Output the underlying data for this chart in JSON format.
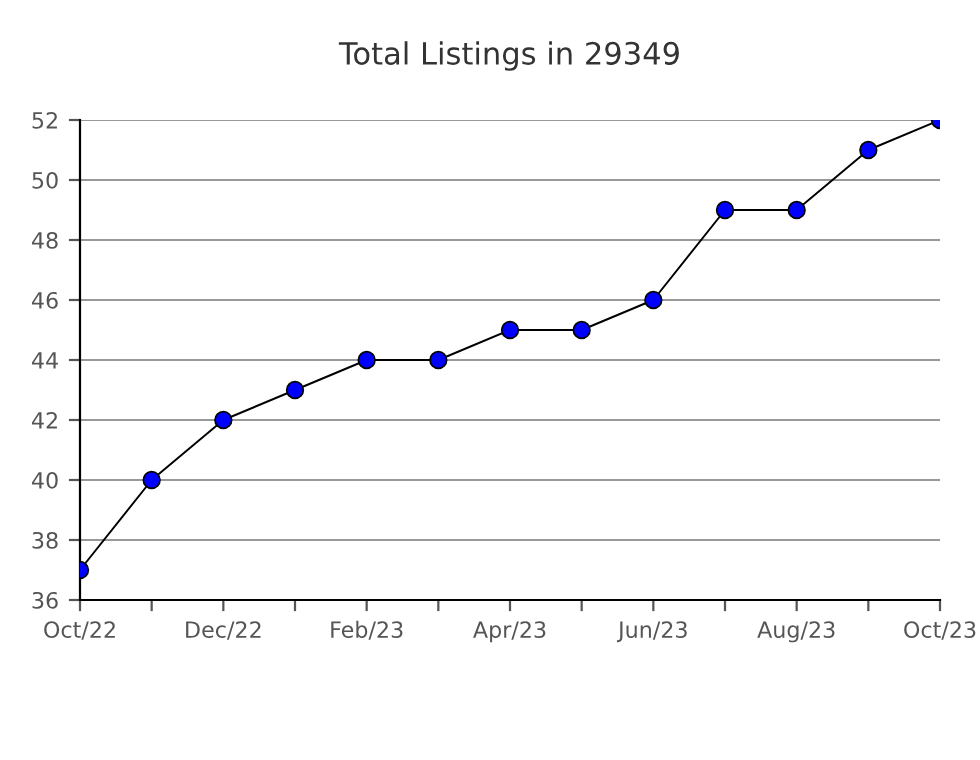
{
  "chart_data": {
    "type": "line",
    "title": "Total Listings in 29349",
    "categories": [
      "Oct/22",
      null,
      "Dec/22",
      null,
      "Feb/23",
      null,
      "Apr/23",
      null,
      "Jun/23",
      null,
      "Aug/23",
      null,
      "Oct/23"
    ],
    "series": [
      {
        "color": "#0000ff",
        "values": [
          37,
          40,
          42,
          43,
          44,
          44,
          45,
          45,
          46,
          49,
          49,
          51,
          52
        ]
      }
    ],
    "ylim": [
      36,
      52
    ],
    "yticks": [
      36,
      38,
      40,
      42,
      44,
      46,
      48,
      50,
      52
    ],
    "grid": "y",
    "marker": "circle",
    "line_style": "solid"
  }
}
